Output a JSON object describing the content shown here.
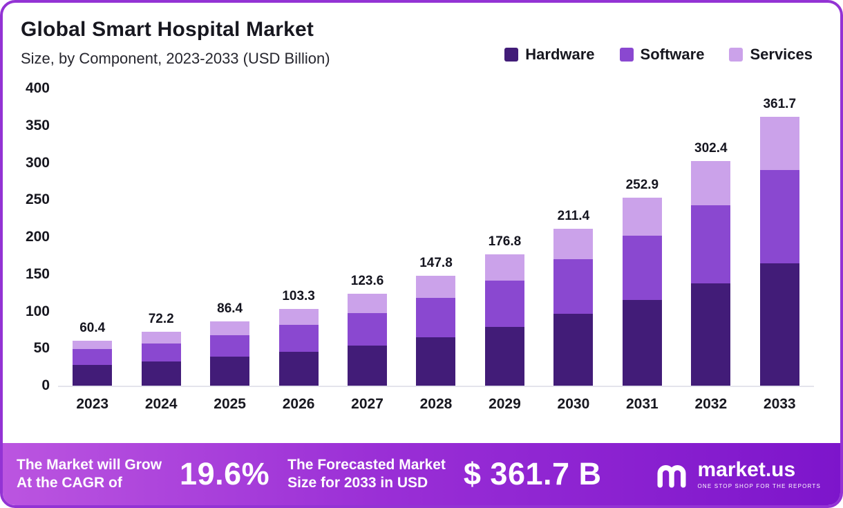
{
  "chart_data": {
    "type": "bar",
    "stacked": true,
    "title": "Global Smart Hospital Market",
    "subtitle": "Size, by Component, 2023-2033 (USD Billion)",
    "categories": [
      "2023",
      "2024",
      "2025",
      "2026",
      "2027",
      "2028",
      "2029",
      "2030",
      "2031",
      "2032",
      "2033"
    ],
    "series": [
      {
        "name": "Hardware",
        "color": "#421c78",
        "values": [
          28.0,
          33.0,
          39.0,
          46.0,
          54.0,
          65.0,
          79.0,
          97.0,
          115.0,
          138.0,
          165.0
        ]
      },
      {
        "name": "Software",
        "color": "#8a48d0",
        "values": [
          21.0,
          24.2,
          29.0,
          36.0,
          44.0,
          53.0,
          62.0,
          73.0,
          87.0,
          105.0,
          125.0
        ]
      },
      {
        "name": "Services",
        "color": "#cba2ea",
        "values": [
          11.4,
          15.0,
          18.4,
          21.3,
          25.6,
          29.8,
          35.8,
          41.4,
          50.9,
          59.4,
          71.7
        ]
      }
    ],
    "totals": [
      "60.4",
      "72.2",
      "86.4",
      "103.3",
      "123.6",
      "147.8",
      "176.8",
      "211.4",
      "252.9",
      "302.4",
      "361.7"
    ],
    "xlabel": "",
    "ylabel": "",
    "ylim": [
      0,
      400
    ],
    "yticks": [
      0,
      50,
      100,
      150,
      200,
      250,
      300,
      350,
      400
    ],
    "grid": false,
    "legend_position": "top-right"
  },
  "footer": {
    "left_line1": "The Market will Grow",
    "left_line2": "At the CAGR of",
    "cagr": "19.6%",
    "mid_line1": "The Forecasted Market",
    "mid_line2": "Size for 2033 in USD",
    "value": "$ 361.7 B",
    "brand": "market.us",
    "tagline": "ONE STOP SHOP FOR THE REPORTS"
  }
}
